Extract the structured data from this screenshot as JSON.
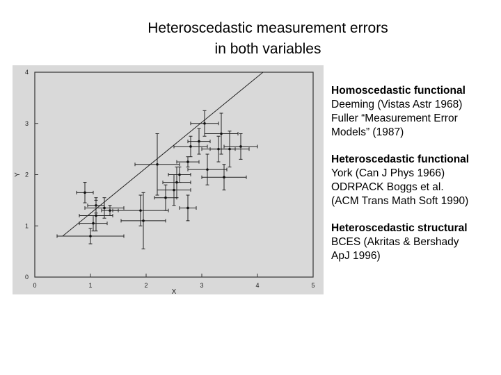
{
  "slide": {
    "title_line1": "Heteroscedastic measurement errors",
    "title_line2": "in both variables"
  },
  "references": [
    {
      "heading": "Homoscedastic functional",
      "lines": [
        "Deeming (Vistas Astr 1968)",
        "Fuller “Measurement Error",
        "Models” (1987)"
      ]
    },
    {
      "heading": "Heteroscedastic functional",
      "lines": [
        "York (Can J Phys 1966)",
        "ODRPACK  Boggs et al.",
        "(ACM Trans Math Soft 1990)"
      ]
    },
    {
      "heading": "Heteroscedastic structural",
      "lines": [
        "BCES (Akritas & Bershady",
        "ApJ 1996)"
      ]
    }
  ],
  "chart_data": {
    "type": "scatter",
    "title": "",
    "xlabel": "X",
    "ylabel": "Y",
    "xlim": [
      0,
      5
    ],
    "ylim": [
      0,
      4
    ],
    "x_ticks": [
      0,
      1,
      2,
      3,
      4,
      5
    ],
    "y_ticks": [
      0,
      1,
      2,
      3,
      4
    ],
    "background": "#d9d9d9",
    "grid": false,
    "fit_line": {
      "x": [
        0.5,
        4.1
      ],
      "y": [
        0.8,
        4.0
      ]
    },
    "points": [
      {
        "x": 0.9,
        "y": 1.65,
        "xerr": 0.15,
        "yerr": 0.2
      },
      {
        "x": 1.1,
        "y": 1.4,
        "xerr": 0.15,
        "yerr": 0.15
      },
      {
        "x": 1.25,
        "y": 1.35,
        "xerr": 0.35,
        "yerr": 0.2
      },
      {
        "x": 1.1,
        "y": 1.2,
        "xerr": 0.3,
        "yerr": 0.3
      },
      {
        "x": 1.05,
        "y": 1.05,
        "xerr": 0.25,
        "yerr": 0.15
      },
      {
        "x": 1.0,
        "y": 0.8,
        "xerr": 0.6,
        "yerr": 0.15
      },
      {
        "x": 1.35,
        "y": 1.3,
        "xerr": 0.15,
        "yerr": 0.1
      },
      {
        "x": 1.9,
        "y": 1.3,
        "xerr": 0.5,
        "yerr": 0.3
      },
      {
        "x": 1.95,
        "y": 1.1,
        "xerr": 0.4,
        "yerr": 0.55
      },
      {
        "x": 2.2,
        "y": 2.2,
        "xerr": 0.4,
        "yerr": 0.6
      },
      {
        "x": 2.35,
        "y": 1.55,
        "xerr": 0.2,
        "yerr": 0.25
      },
      {
        "x": 2.5,
        "y": 1.7,
        "xerr": 0.3,
        "yerr": 0.3
      },
      {
        "x": 2.6,
        "y": 2.0,
        "xerr": 0.2,
        "yerr": 0.15
      },
      {
        "x": 2.55,
        "y": 1.85,
        "xerr": 0.25,
        "yerr": 0.3
      },
      {
        "x": 2.75,
        "y": 1.35,
        "xerr": 0.15,
        "yerr": 0.25
      },
      {
        "x": 2.75,
        "y": 2.25,
        "xerr": 0.2,
        "yerr": 0.1
      },
      {
        "x": 2.8,
        "y": 2.55,
        "xerr": 0.3,
        "yerr": 0.2
      },
      {
        "x": 2.95,
        "y": 2.65,
        "xerr": 0.2,
        "yerr": 0.25
      },
      {
        "x": 3.05,
        "y": 3.0,
        "xerr": 0.25,
        "yerr": 0.25
      },
      {
        "x": 3.1,
        "y": 2.1,
        "xerr": 0.35,
        "yerr": 0.3
      },
      {
        "x": 3.3,
        "y": 2.5,
        "xerr": 0.3,
        "yerr": 0.25
      },
      {
        "x": 3.35,
        "y": 2.8,
        "xerr": 0.3,
        "yerr": 0.4
      },
      {
        "x": 3.5,
        "y": 2.5,
        "xerr": 0.35,
        "yerr": 0.35
      },
      {
        "x": 3.4,
        "y": 1.95,
        "xerr": 0.4,
        "yerr": 0.25
      },
      {
        "x": 3.7,
        "y": 2.55,
        "xerr": 0.3,
        "yerr": 0.25
      }
    ]
  }
}
